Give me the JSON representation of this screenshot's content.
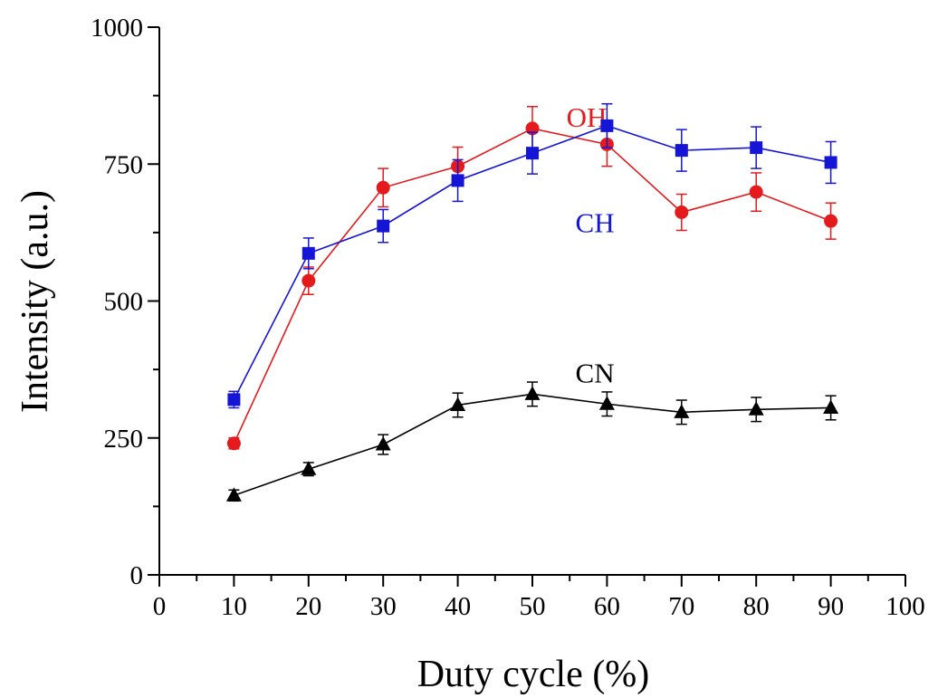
{
  "chart_data": {
    "type": "line",
    "title": "",
    "xlabel": "Duty cycle (%)",
    "ylabel": "Intensity (a.u.)",
    "xlim": [
      0,
      100
    ],
    "ylim": [
      0,
      1000
    ],
    "x_ticks": [
      0,
      10,
      20,
      30,
      40,
      50,
      60,
      70,
      80,
      90,
      100
    ],
    "y_ticks": [
      0,
      250,
      500,
      750,
      1000
    ],
    "grid": false,
    "legend": "none (series labelled inline)",
    "x": [
      10,
      20,
      30,
      40,
      50,
      60,
      70,
      80,
      90
    ],
    "series": [
      {
        "name": "OH",
        "color": "#e41a1c",
        "marker": "circle",
        "values": [
          240,
          537,
          707,
          746,
          815,
          786,
          662,
          699,
          646
        ],
        "errors": [
          10,
          25,
          35,
          35,
          40,
          40,
          33,
          35,
          33
        ],
        "label_at": [
          60,
          835
        ]
      },
      {
        "name": "CH",
        "color": "#1515d6",
        "marker": "square",
        "values": [
          320,
          587,
          637,
          720,
          770,
          820,
          775,
          780,
          753
        ],
        "errors": [
          15,
          28,
          30,
          38,
          38,
          40,
          38,
          38,
          38
        ],
        "label_at": [
          61,
          642
        ]
      },
      {
        "name": "CN",
        "color": "#000000",
        "marker": "triangle",
        "values": [
          145,
          193,
          238,
          310,
          330,
          312,
          297,
          302,
          305
        ],
        "errors": [
          10,
          12,
          18,
          22,
          22,
          22,
          22,
          22,
          22
        ],
        "label_at": [
          61,
          368
        ]
      }
    ]
  }
}
